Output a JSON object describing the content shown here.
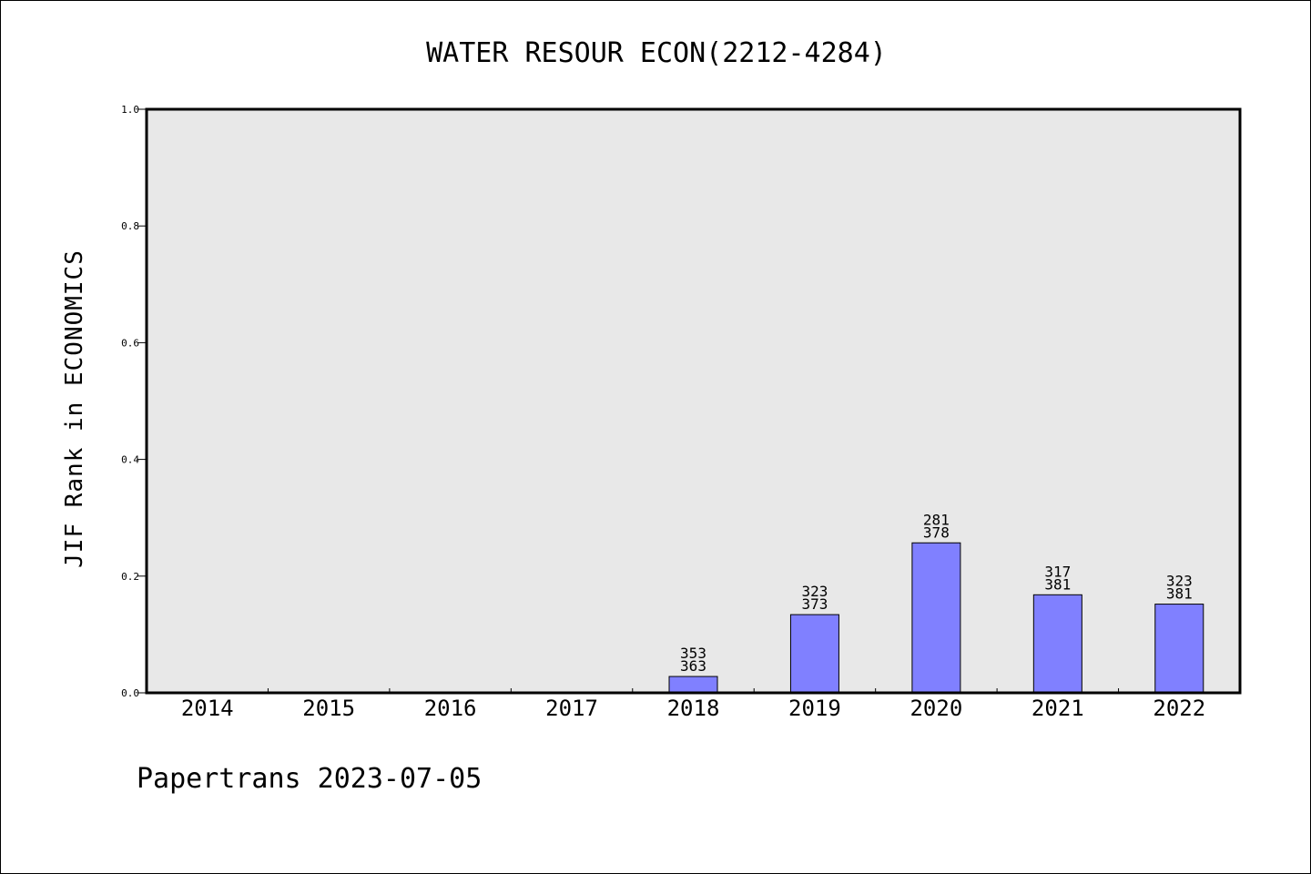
{
  "chart_data": {
    "type": "bar",
    "title": "WATER RESOUR ECON(2212-4284)",
    "xlabel": "",
    "ylabel": "JIF Rank in ECONOMICS",
    "ylim": [
      0,
      1.0
    ],
    "yticks": [
      "0.0",
      "0.2",
      "0.4",
      "0.6",
      "0.8",
      "1.0"
    ],
    "categories": [
      "2014",
      "2015",
      "2016",
      "2017",
      "2018",
      "2019",
      "2020",
      "2021",
      "2022"
    ],
    "values": [
      null,
      null,
      null,
      null,
      0.028,
      0.134,
      0.257,
      0.168,
      0.152
    ],
    "labels_top": [
      "",
      "",
      "",
      "",
      "353",
      "323",
      "281",
      "317",
      "323"
    ],
    "labels_bottom": [
      "",
      "",
      "",
      "",
      "363",
      "373",
      "378",
      "381",
      "381"
    ],
    "bar_color": "#8080ff",
    "plot_background": "#e8e8e8",
    "grid": false,
    "legend": "none"
  },
  "footer": "Papertrans 2023-07-05"
}
